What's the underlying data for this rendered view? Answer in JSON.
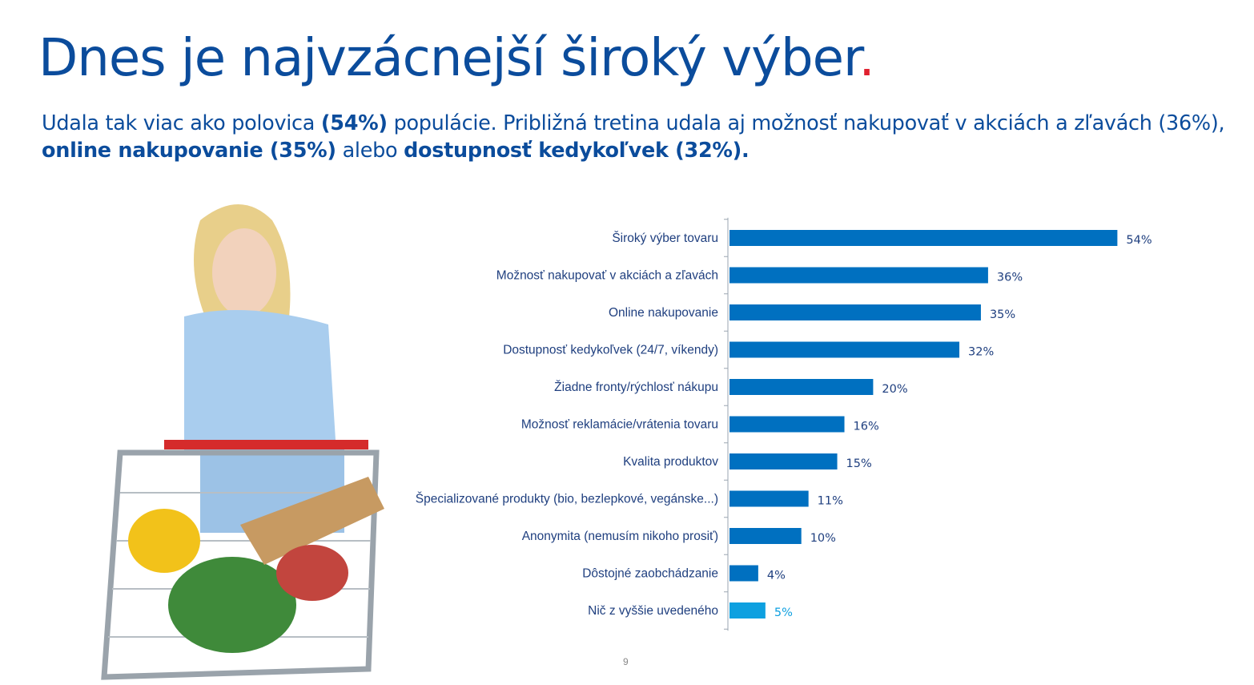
{
  "title": {
    "text": "Dnes je najvzácnejší široký výber",
    "dot": "."
  },
  "subtitle": {
    "p1": "Udala tak viac ako polovica ",
    "b1": "(54%)",
    "p2": " populácie. Približná tretina udala aj možnosť nakupovať v akciách a zľavách (36%), ",
    "b2": "online nakupovanie (35%)",
    "p3": " alebo ",
    "b3": "dostupnosť kedykoľvek (32%)."
  },
  "page_number": "9",
  "colors": {
    "title": "#0b4c9c",
    "accent_dot": "#e0202e",
    "bar": "#0070c0",
    "bar_highlight": "#0ea0e0",
    "label": "#1f3f7f"
  },
  "chart_data": {
    "type": "bar",
    "orientation": "horizontal",
    "categories": [
      "Široký výber tovaru",
      "Možnosť nakupovať v akciách a zľavách",
      "Online nakupovanie",
      "Dostupnosť kedykoľvek (24/7, víkendy)",
      "Žiadne fronty/rýchlosť nákupu",
      "Možnosť reklamácie/vrátenia tovaru",
      "Kvalita produktov",
      "Špecializované produkty (bio, bezlepkové, vegánske...)",
      "Anonymita (nemusím nikoho prosiť)",
      "Dôstojné zaobchádzanie",
      "Nič z vyššie uvedeného"
    ],
    "values": [
      54,
      36,
      35,
      32,
      20,
      16,
      15,
      11,
      10,
      4,
      5
    ],
    "data_labels": [
      "54%",
      "36%",
      "35%",
      "32%",
      "20%",
      "16%",
      "15%",
      "11%",
      "10%",
      "4%",
      "5%"
    ],
    "highlight_index": 10,
    "unit": "%",
    "grid": false
  }
}
